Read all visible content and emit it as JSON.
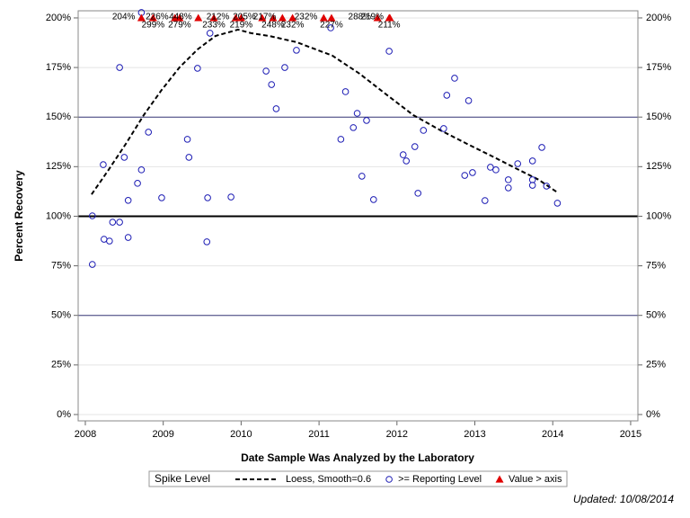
{
  "chart_data": {
    "type": "scatter",
    "xlabel": "Date Sample Was Analyzed by the Laboratory",
    "ylabel": "Percent Recovery",
    "legend_title": "Spike Level",
    "footnote": "Updated: 10/08/2014",
    "xlim": [
      2007.908,
      2015.093
    ],
    "xticks": [
      2008,
      2009,
      2010,
      2011,
      2012,
      2013,
      2014,
      2015
    ],
    "ylim": [
      -3.2,
      203.6
    ],
    "yticks": [
      {
        "value": 0,
        "label": "0%"
      },
      {
        "value": 25,
        "label": "25%"
      },
      {
        "value": 50,
        "label": "50%"
      },
      {
        "value": 75,
        "label": "75%"
      },
      {
        "value": 100,
        "label": "100%"
      },
      {
        "value": 125,
        "label": "125%"
      },
      {
        "value": 150,
        "label": "150%"
      },
      {
        "value": 175,
        "label": "175%"
      },
      {
        "value": 200,
        "label": "200%"
      }
    ],
    "grid": true,
    "reference_lines": [
      {
        "value": 50,
        "color": "#3a3a7a",
        "width": 1
      },
      {
        "value": 100,
        "color": "#000000",
        "width": 2
      },
      {
        "value": 150,
        "color": "#3a3a7a",
        "width": 1
      }
    ],
    "series": [
      {
        "name": "Loess, Smooth=0.6",
        "color": "#000000",
        "mark": "line",
        "x": [
          2008.08,
          2008.29,
          2008.52,
          2008.75,
          2008.98,
          2009.21,
          2009.44,
          2009.67,
          2009.96,
          2010.13,
          2010.36,
          2010.71,
          2011.17,
          2011.52,
          2011.86,
          2012.21,
          2012.56,
          2012.9,
          2013.25,
          2013.59,
          2013.82,
          2014.06
        ],
        "values": [
          111.0,
          122.9,
          136.5,
          151.0,
          163.7,
          175.1,
          184.1,
          190.9,
          194.1,
          192.3,
          190.9,
          187.8,
          181.0,
          171.9,
          161.5,
          151.0,
          143.3,
          136.5,
          129.7,
          122.9,
          118.4,
          112.0
        ]
      },
      {
        "name": ">= Reporting Level",
        "color": "#1c1cb4",
        "mark": "circle",
        "x": [
          2008.09,
          2008.09,
          2008.23,
          2008.24,
          2008.31,
          2008.35,
          2008.44,
          2008.44,
          2008.5,
          2008.55,
          2008.55,
          2008.67,
          2008.72,
          2008.72,
          2008.81,
          2008.98,
          2009.31,
          2009.33,
          2009.44,
          2009.56,
          2009.57,
          2009.6,
          2009.87,
          2010.32,
          2010.39,
          2010.45,
          2010.56,
          2010.71,
          2011.15,
          2011.28,
          2011.34,
          2011.44,
          2011.49,
          2011.55,
          2011.61,
          2011.7,
          2011.9,
          2012.08,
          2012.12,
          2012.23,
          2012.27,
          2012.34,
          2012.6,
          2012.64,
          2012.74,
          2012.87,
          2012.92,
          2012.97,
          2013.13,
          2013.2,
          2013.27,
          2013.43,
          2013.43,
          2013.55,
          2013.74,
          2013.74,
          2013.74,
          2013.86,
          2013.92,
          2014.06
        ],
        "values": [
          100.2,
          75.7,
          126.0,
          88.4,
          87.5,
          97.0,
          97.0,
          175.0,
          129.7,
          108.0,
          89.3,
          116.6,
          123.4,
          202.7,
          142.4,
          109.3,
          138.8,
          129.7,
          174.6,
          87.1,
          109.3,
          192.3,
          109.7,
          173.2,
          166.4,
          154.2,
          175.0,
          183.7,
          195.0,
          138.8,
          162.8,
          144.7,
          151.9,
          120.2,
          148.3,
          108.4,
          183.2,
          131.0,
          127.9,
          135.1,
          111.6,
          143.3,
          144.2,
          161.0,
          169.6,
          120.6,
          158.3,
          122.0,
          107.9,
          124.7,
          123.4,
          118.4,
          114.3,
          126.5,
          127.9,
          118.4,
          115.6,
          134.7,
          115.2,
          106.6
        ]
      },
      {
        "name": "Value > axis",
        "color": "#e00000",
        "mark": "triangle",
        "x": [
          2008.72,
          2008.87,
          2009.15,
          2009.21,
          2009.45,
          2009.65,
          2009.93,
          2010.0,
          2010.27,
          2010.41,
          2010.53,
          2010.66,
          2011.06,
          2011.16,
          2011.75,
          2011.9,
          2011.91
        ],
        "values": [
          204,
          299,
          226,
          279,
          448,
          233,
          212,
          219,
          205,
          248,
          217,
          232,
          232,
          227,
          288,
          211,
          219
        ],
        "value_labels": [
          "204%",
          "299%",
          "226%",
          "279%",
          "448%",
          "233%",
          "212%",
          "219%",
          "205%",
          "248%",
          "217%",
          "232%",
          "232%",
          "227%",
          "288%",
          "211%",
          "219%"
        ]
      }
    ]
  }
}
